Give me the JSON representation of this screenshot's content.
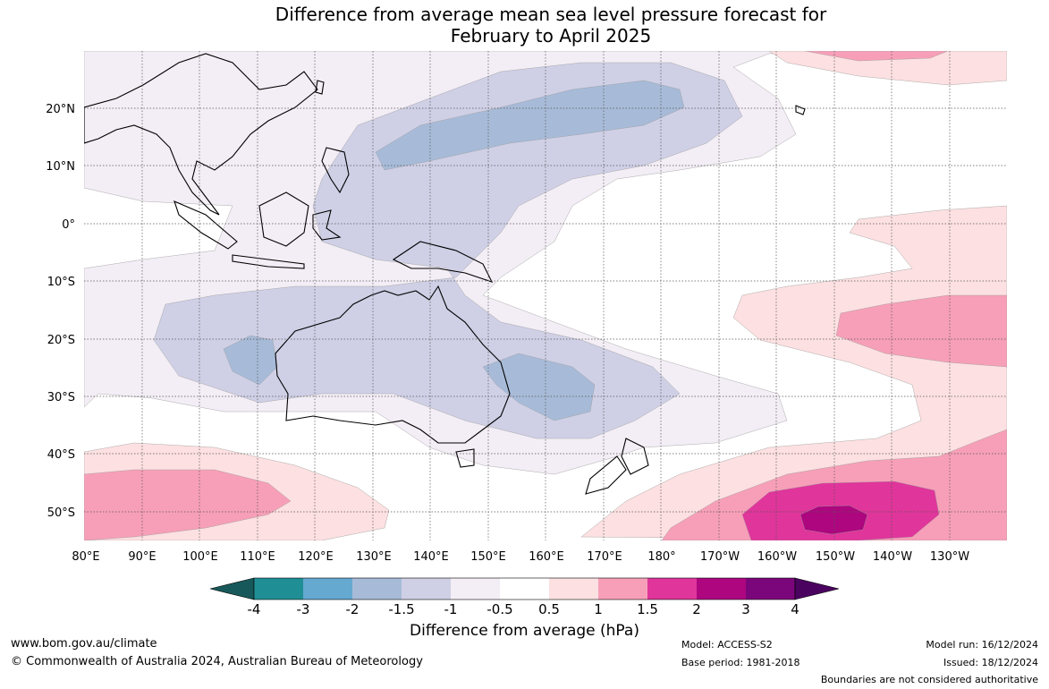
{
  "title_line1": "Difference from average mean sea level pressure forecast for",
  "title_line2": "February to April 2025",
  "lat_labels": [
    "20°N",
    "10°N",
    "0°",
    "10°S",
    "20°S",
    "30°S",
    "40°S",
    "50°S"
  ],
  "lon_labels": [
    "80°E",
    "90°E",
    "100°E",
    "110°E",
    "120°E",
    "130°E",
    "140°E",
    "150°E",
    "160°E",
    "170°E",
    "180°",
    "170°W",
    "160°W",
    "150°W",
    "140°W",
    "130°W"
  ],
  "colorbar": {
    "tick_labels": [
      "-4",
      "-3",
      "-2",
      "-1.5",
      "-1",
      "-0.5",
      "0.5",
      "1",
      "1.5",
      "2",
      "3",
      "4"
    ],
    "colors": [
      "#17595a",
      "#1f8f95",
      "#65a9d1",
      "#a7bbd8",
      "#cfd0e6",
      "#f3edf5",
      "#ffffff",
      "#fde0e1",
      "#f79fb8",
      "#e0359b",
      "#ad067f",
      "#7b057b",
      "#4b0360"
    ],
    "label": "Difference from average (hPa)"
  },
  "contour_colors": {
    "neg_05": "#f3edf5",
    "neg_1": "#cfd0e6",
    "neg_15": "#a7bbd8",
    "neg_2": "#65a9d1",
    "pos_05": "#fde0e1",
    "pos_1": "#f79fb8",
    "pos_15": "#e0359b",
    "pos_2": "#ad067f",
    "land_line": "#000000"
  },
  "footer": {
    "website": "www.bom.gov.au/climate",
    "copyright": "© Commonwealth of Australia 2024, Australian Bureau of Meteorology",
    "model": "Model: ACCESS-S2",
    "base_period": "Base period: 1981-2018",
    "model_run": "Model run: 16/12/2024",
    "issued": "Issued: 18/12/2024",
    "disclaimer": "Boundaries are not considered authoritative"
  }
}
